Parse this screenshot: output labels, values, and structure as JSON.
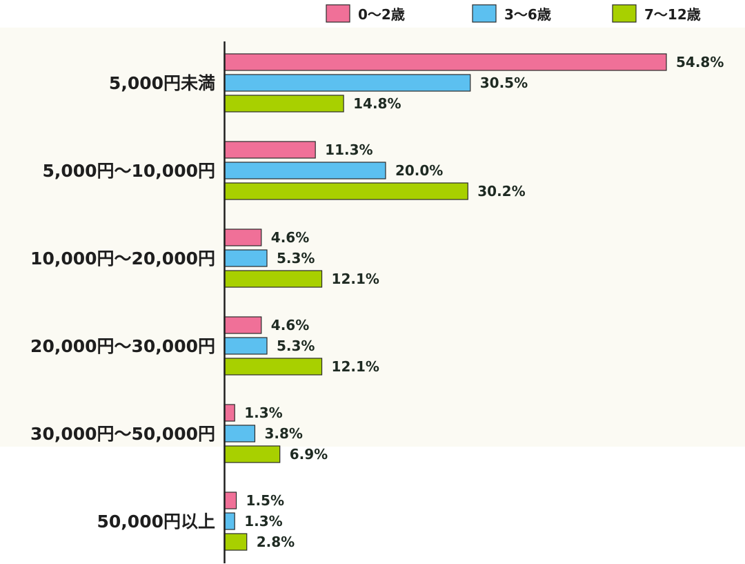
{
  "chart_data": {
    "type": "bar",
    "orientation": "horizontal",
    "categories": [
      "5,000円未満",
      "5,000円～10,000円",
      "10,000円～20,000円",
      "20,000円～30,000円",
      "30,000円～50,000円",
      "50,000円以上"
    ],
    "series": [
      {
        "name": "0～2歳",
        "color": "#f07098",
        "values": [
          54.8,
          11.3,
          4.6,
          4.6,
          1.3,
          1.5
        ]
      },
      {
        "name": "3～6歳",
        "color": "#5cc0f0",
        "values": [
          30.5,
          20.0,
          5.3,
          5.3,
          3.8,
          1.3
        ]
      },
      {
        "name": "7～12歳",
        "color": "#a8d000",
        "values": [
          14.8,
          30.2,
          12.1,
          12.1,
          6.9,
          2.8
        ]
      }
    ],
    "value_labels": [
      [
        "54.8%",
        "11.3%",
        "4.6%",
        "4.6%",
        "1.3%",
        "1.5%"
      ],
      [
        "30.5%",
        "20.0%",
        "5.3%",
        "5.3%",
        "3.8%",
        "1.3%"
      ],
      [
        "14.8%",
        "30.2%",
        "12.1%",
        "12.1%",
        "6.9%",
        "2.8%"
      ]
    ],
    "legend_position": "top",
    "grid": false,
    "background": "#fbfaf3"
  }
}
